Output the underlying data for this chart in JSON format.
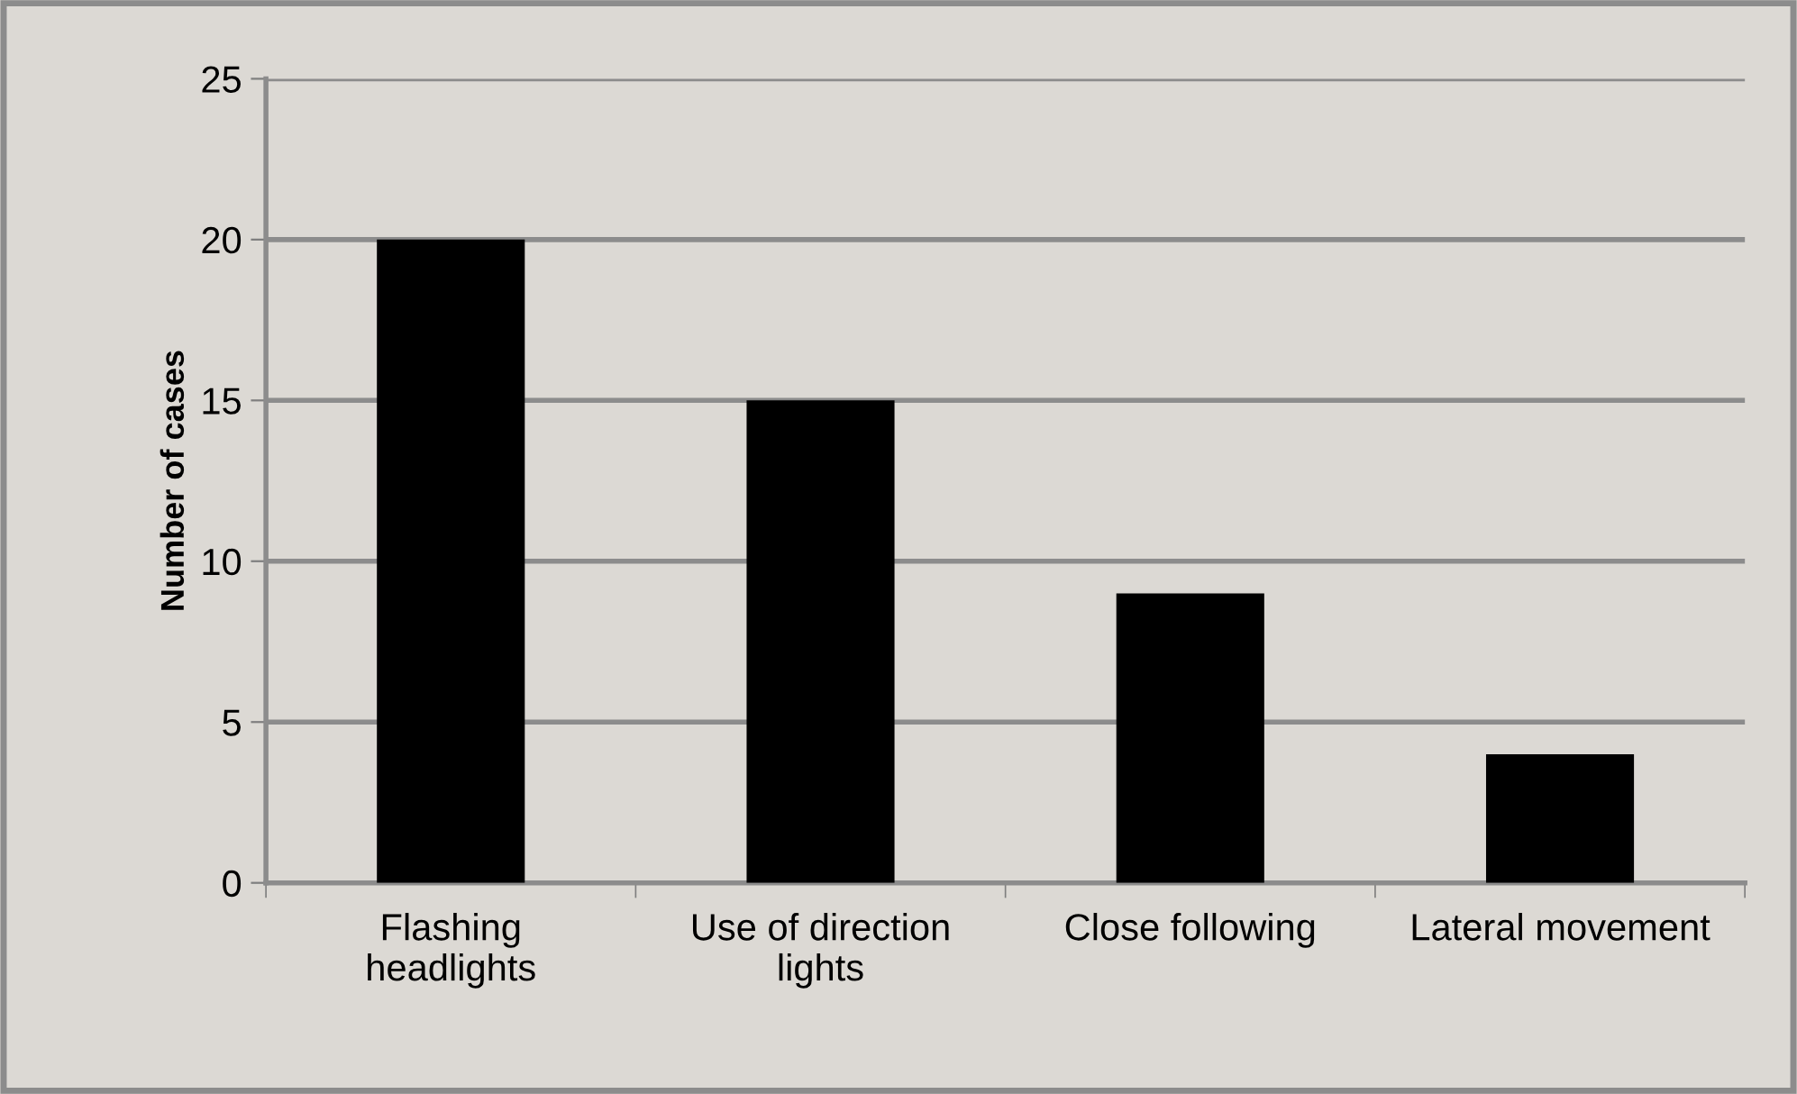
{
  "chart_data": {
    "type": "bar",
    "ylabel": "Number of cases",
    "categories": [
      "Flashing headlights",
      "Use of direction lights",
      "Close following",
      "Lateral movement"
    ],
    "values": [
      20,
      15,
      9,
      4
    ],
    "color": "#000000",
    "ylim": [
      0,
      25
    ],
    "yticks": [
      0,
      5,
      10,
      15,
      20,
      25
    ],
    "grid": "y",
    "legend": false
  }
}
